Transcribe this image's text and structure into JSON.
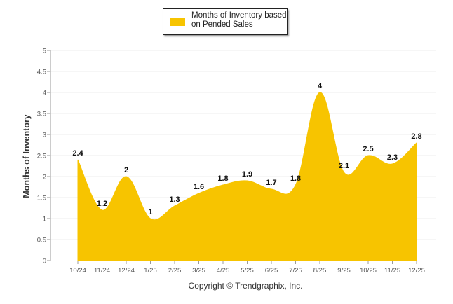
{
  "chart_data": {
    "type": "area",
    "title": "",
    "xlabel": "",
    "ylabel": "Months of Inventory",
    "ylim": [
      0,
      5
    ],
    "yticks": [
      "0",
      "0.5",
      "1",
      "1.5",
      "2",
      "2.5",
      "3",
      "3.5",
      "4",
      "4.5",
      "5"
    ],
    "categories": [
      "10/24",
      "11/24",
      "12/24",
      "1/25",
      "2/25",
      "3/25",
      "4/25",
      "5/25",
      "6/25",
      "7/25",
      "8/25",
      "9/25",
      "10/25",
      "11/25",
      "12/25"
    ],
    "series": [
      {
        "name": "Months of Inventory based on Pended Sales",
        "values": [
          2.4,
          1.2,
          2,
          1,
          1.3,
          1.6,
          1.8,
          1.9,
          1.7,
          1.8,
          4,
          2.1,
          2.5,
          2.3,
          2.8
        ],
        "data_labels": [
          "2.4",
          "1.2",
          "2",
          "1",
          "1.3",
          "1.6",
          "1.8",
          "1.9",
          "1.7",
          "1.8",
          "4",
          "2.1",
          "2.5",
          "2.3",
          "2.8"
        ]
      }
    ],
    "legend": {
      "line1": "Months of Inventory based",
      "line2": "on Pended Sales",
      "placement": "top-center"
    },
    "grid": true,
    "color": "#f7c400"
  },
  "footer": {
    "copyright": "Copyright © Trendgraphix, Inc."
  }
}
